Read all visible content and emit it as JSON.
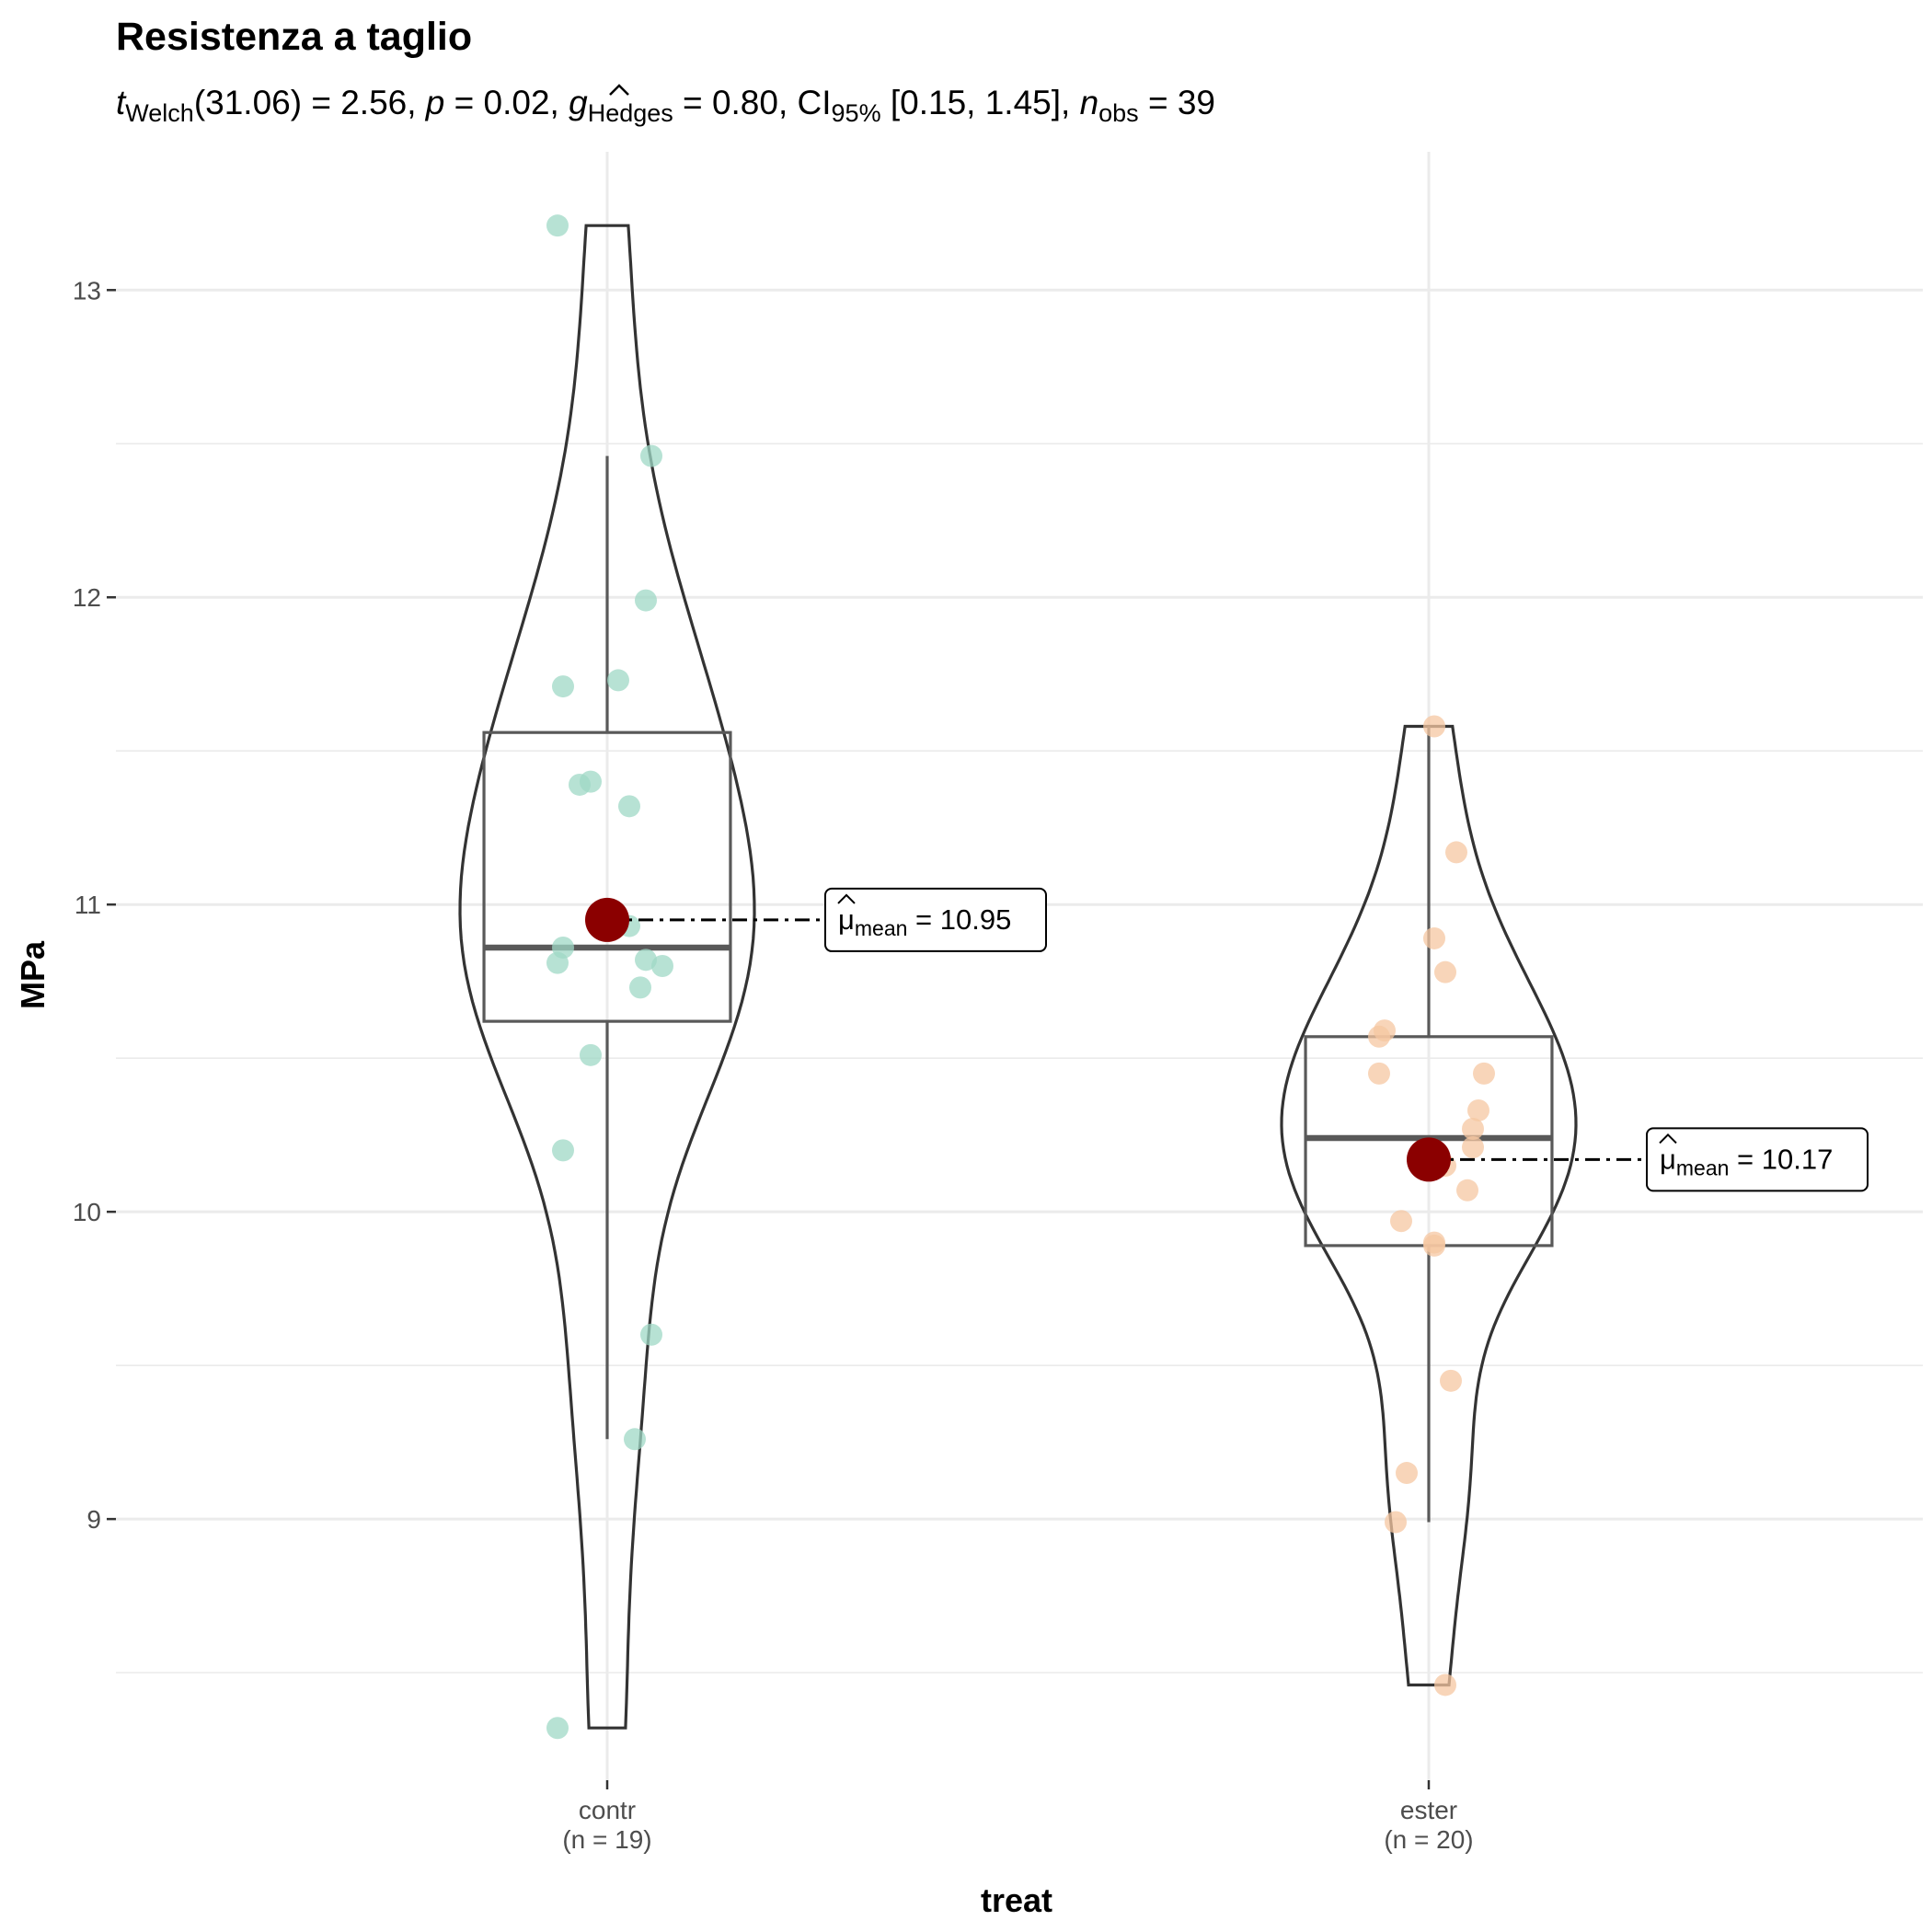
{
  "chart_data": {
    "type": "violin",
    "title": "Resistenza a taglio",
    "subtitle": {
      "t": "t",
      "t_sub": "Welch",
      "part1": "(31.06) = 2.56, ",
      "p": "p",
      "part2": " = 0.02, ",
      "g": "g",
      "g_sub": "Hedges",
      "part3": " = 0.80, CI",
      "ci_sub": "95%",
      "part4": " [0.15, 1.45], ",
      "n": "n",
      "n_sub": "obs",
      "part5": " = 39"
    },
    "xlabel": "treat",
    "ylabel": "MPa",
    "ylim": [
      8.15,
      13.45
    ],
    "yticks": [
      9,
      10,
      11,
      12,
      13
    ],
    "grid": true,
    "groups": [
      {
        "category": "contr",
        "n_label": "(n = 19)",
        "color": "#9fd8c5",
        "box": {
          "q1": 10.62,
          "median": 10.86,
          "q3": 11.56,
          "whisker_low": 9.26,
          "whisker_high": 12.46
        },
        "mean": 10.95,
        "mean_label": {
          "mu": "μ",
          "sub": "mean",
          "value": " = 10.95"
        },
        "violin_range": [
          8.32,
          13.21
        ],
        "points": [
          {
            "jitter": -0.09,
            "y": 13.21
          },
          {
            "jitter": 0.08,
            "y": 12.46
          },
          {
            "jitter": 0.07,
            "y": 11.99
          },
          {
            "jitter": -0.08,
            "y": 11.71
          },
          {
            "jitter": 0.02,
            "y": 11.73
          },
          {
            "jitter": -0.05,
            "y": 11.39
          },
          {
            "jitter": -0.03,
            "y": 11.4
          },
          {
            "jitter": 0.04,
            "y": 11.32
          },
          {
            "jitter": 0.04,
            "y": 10.93
          },
          {
            "jitter": -0.08,
            "y": 10.86
          },
          {
            "jitter": -0.09,
            "y": 10.81
          },
          {
            "jitter": 0.07,
            "y": 10.82
          },
          {
            "jitter": 0.1,
            "y": 10.8
          },
          {
            "jitter": 0.06,
            "y": 10.73
          },
          {
            "jitter": -0.03,
            "y": 10.51
          },
          {
            "jitter": -0.08,
            "y": 10.2
          },
          {
            "jitter": 0.08,
            "y": 9.6
          },
          {
            "jitter": 0.05,
            "y": 9.26
          },
          {
            "jitter": -0.09,
            "y": 8.32
          }
        ]
      },
      {
        "category": "ester",
        "n_label": "(n = 20)",
        "color": "#f5c7a1",
        "box": {
          "q1": 9.89,
          "median": 10.24,
          "q3": 10.57,
          "whisker_low": 8.99,
          "whisker_high": 11.58
        },
        "mean": 10.17,
        "mean_label": {
          "mu": "μ",
          "sub": "mean",
          "value": " = 10.17"
        },
        "violin_range": [
          8.46,
          11.58
        ],
        "points": [
          {
            "jitter": 0.01,
            "y": 11.58
          },
          {
            "jitter": 0.05,
            "y": 11.17
          },
          {
            "jitter": 0.01,
            "y": 10.89
          },
          {
            "jitter": 0.03,
            "y": 10.78
          },
          {
            "jitter": -0.08,
            "y": 10.59
          },
          {
            "jitter": -0.09,
            "y": 10.57
          },
          {
            "jitter": -0.09,
            "y": 10.45
          },
          {
            "jitter": 0.1,
            "y": 10.45
          },
          {
            "jitter": 0.09,
            "y": 10.33
          },
          {
            "jitter": 0.08,
            "y": 10.27
          },
          {
            "jitter": 0.08,
            "y": 10.21
          },
          {
            "jitter": 0.03,
            "y": 10.15
          },
          {
            "jitter": 0.07,
            "y": 10.07
          },
          {
            "jitter": -0.05,
            "y": 9.97
          },
          {
            "jitter": 0.01,
            "y": 9.9
          },
          {
            "jitter": 0.01,
            "y": 9.89
          },
          {
            "jitter": 0.04,
            "y": 9.45
          },
          {
            "jitter": -0.04,
            "y": 9.15
          },
          {
            "jitter": -0.06,
            "y": 8.99
          },
          {
            "jitter": 0.03,
            "y": 8.46
          }
        ]
      }
    ],
    "mean_color": "#8b0000"
  }
}
